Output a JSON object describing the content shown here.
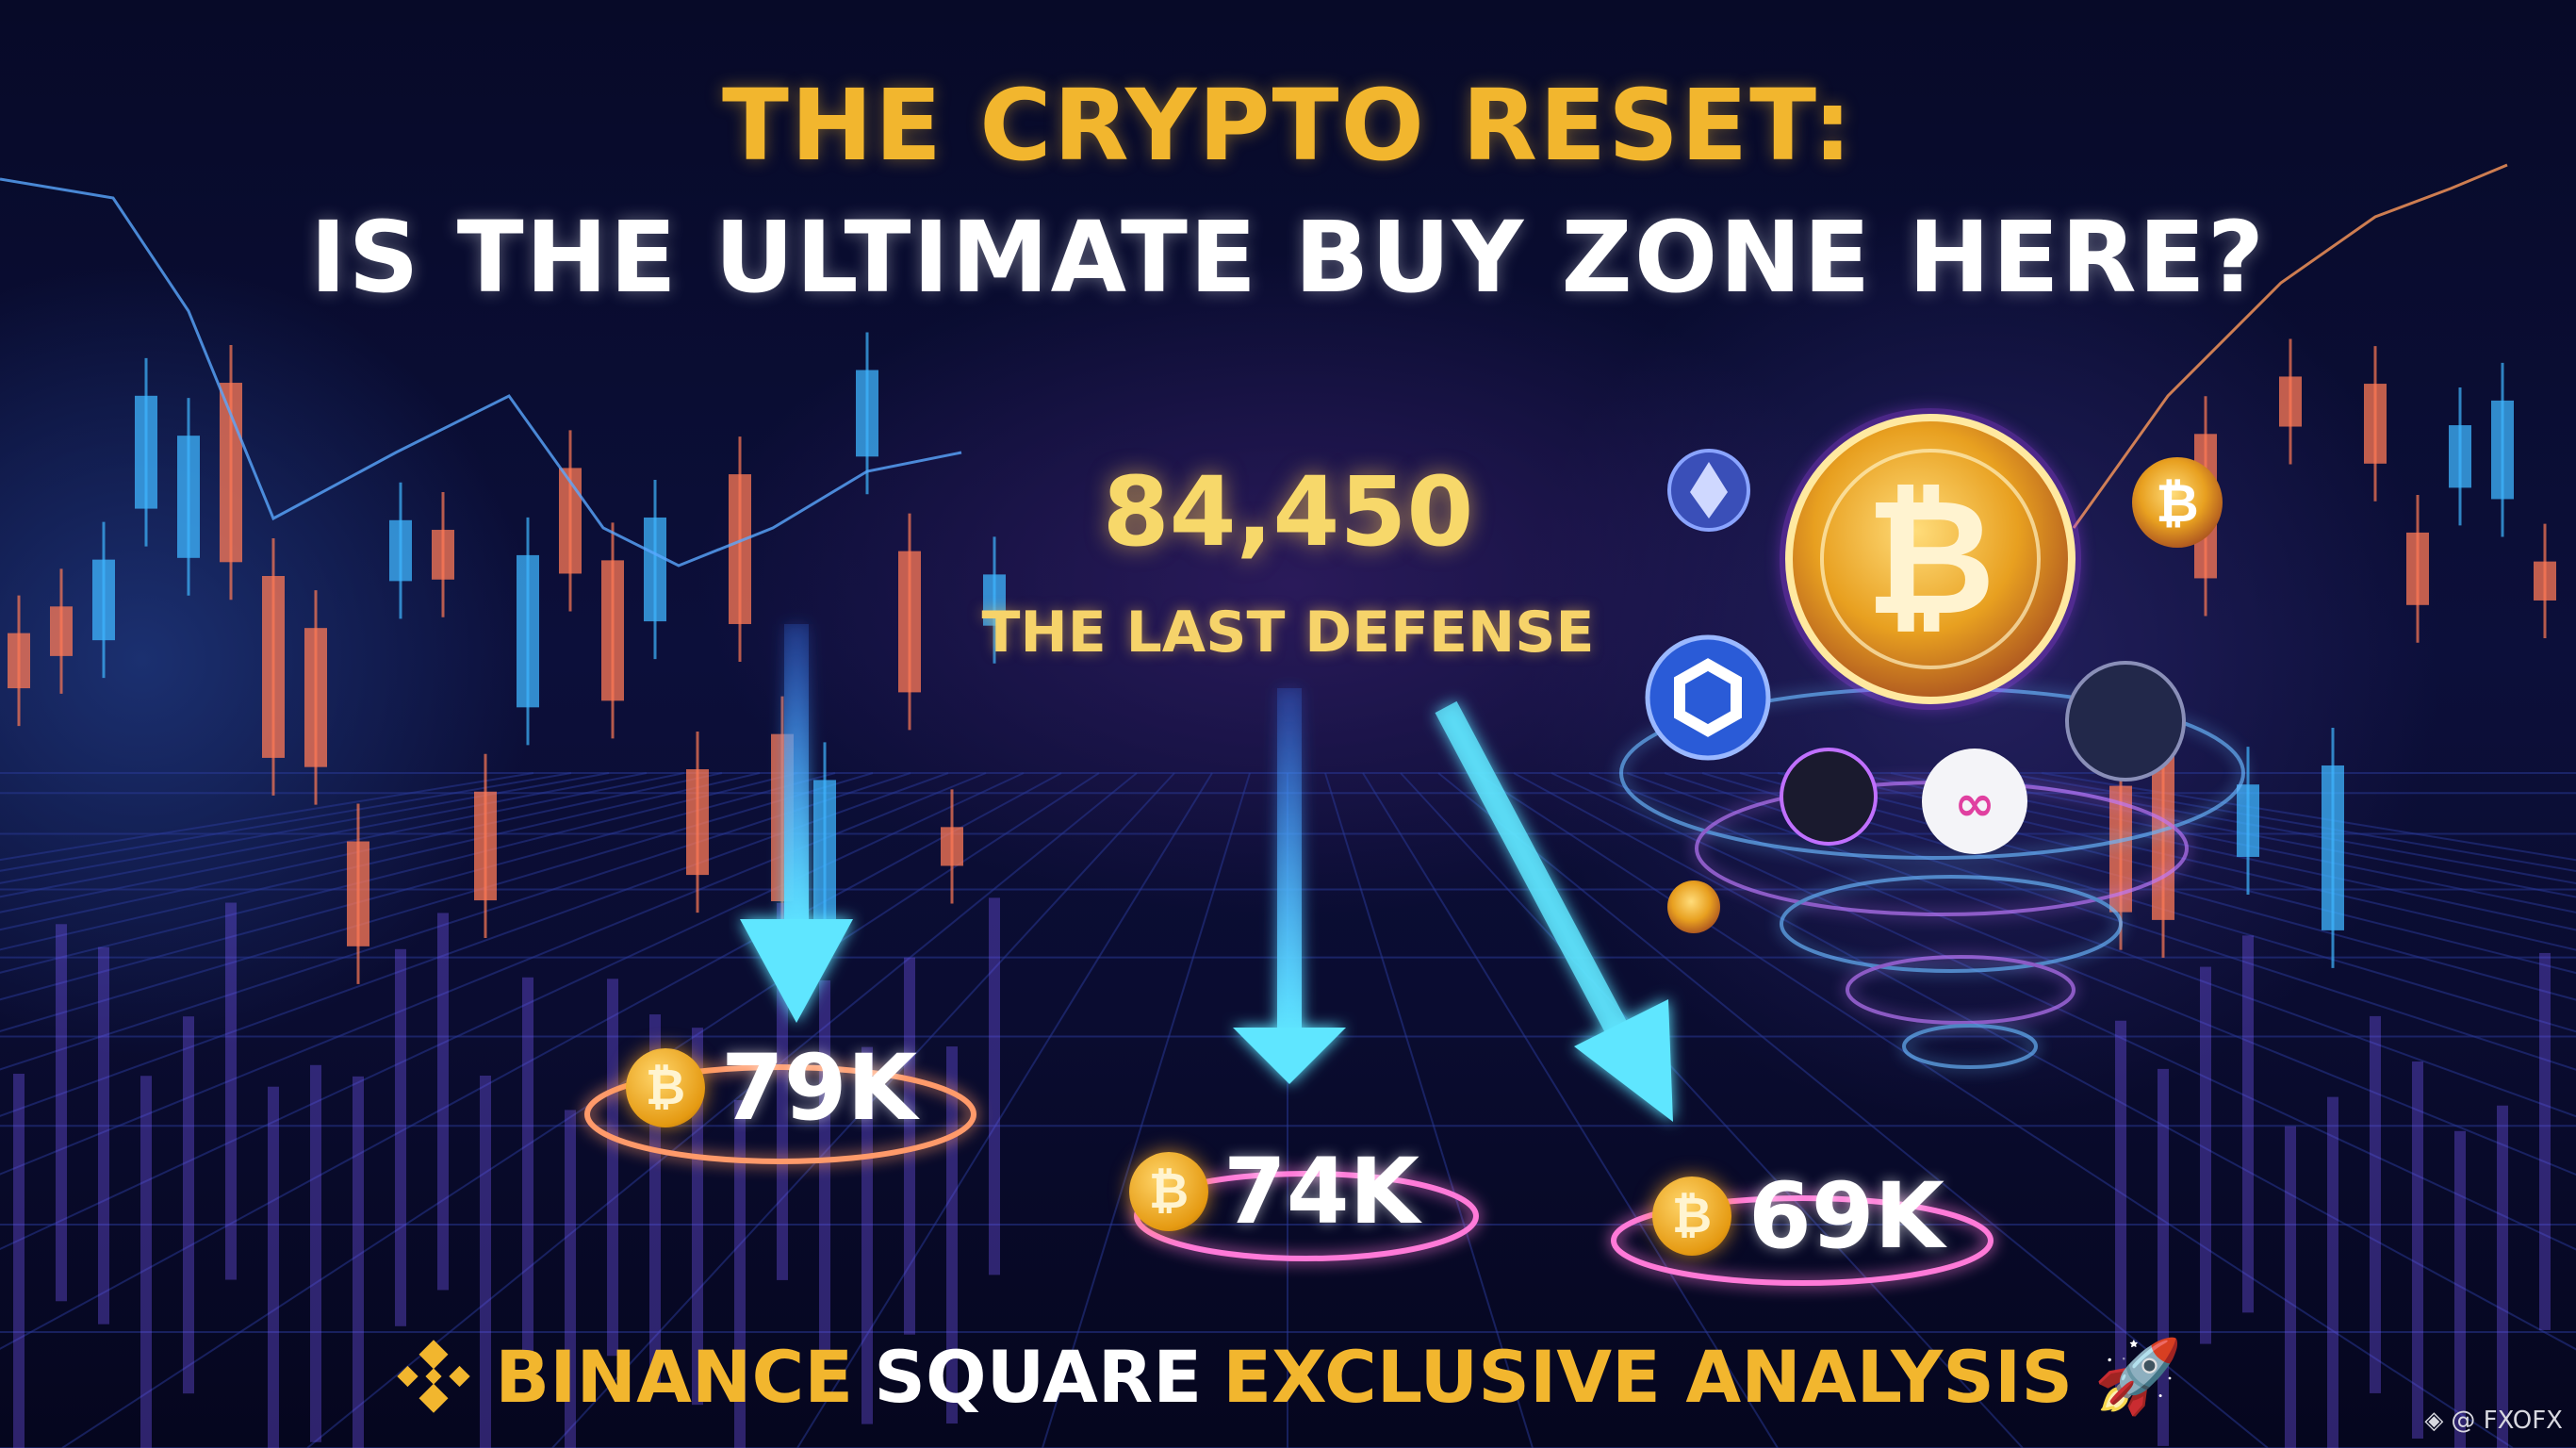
{
  "title": {
    "line1": "THE CRYPTO RESET:",
    "line2": "IS THE ULTIMATE BUY ZONE HERE?"
  },
  "key_level": {
    "price": "84,450",
    "label": "THE LAST DEFENSE"
  },
  "targets": [
    {
      "label": "79K",
      "icon": "bitcoin-coin-icon"
    },
    {
      "label": "74K",
      "icon": "bitcoin-coin-icon"
    },
    {
      "label": "69K",
      "icon": "bitcoin-coin-icon"
    }
  ],
  "footer": {
    "brand": "BINANCE",
    "word2": "SQUARE",
    "word3": "EXCLUSIVE ANALYSIS",
    "logo_icon": "binance-logo-icon",
    "trail_icon": "rocket-icon"
  },
  "watermark": {
    "text": "@ FXOFX",
    "icon": "binance-logo-icon"
  },
  "colors": {
    "gold": "#f2b62e",
    "cyan_arrow": "#4fd8ff",
    "background": "#0a0c30",
    "candle_up": "#3fb6ff",
    "candle_down": "#ff7a55"
  }
}
